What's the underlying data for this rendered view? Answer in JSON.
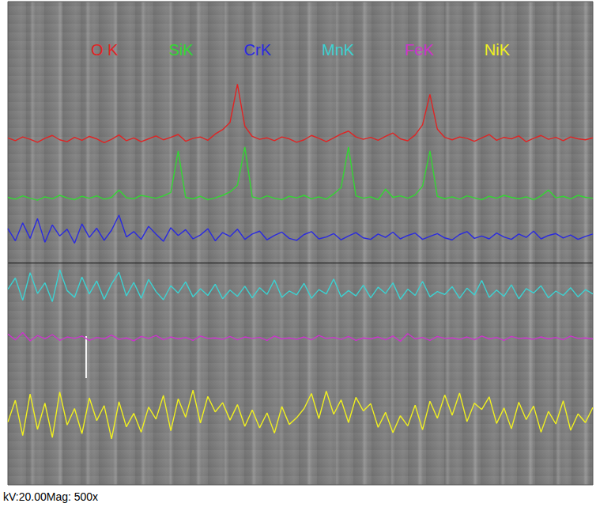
{
  "chart_data": {
    "type": "line",
    "caption": "kV:20.00Mag: 500x",
    "legend": "top",
    "grid": false,
    "tick_labels": false,
    "xlim": [
      0,
      79
    ],
    "ylim": [
      0,
      100
    ],
    "x": [
      0,
      1,
      2,
      3,
      4,
      5,
      6,
      7,
      8,
      9,
      10,
      11,
      12,
      13,
      14,
      15,
      16,
      17,
      18,
      19,
      20,
      21,
      22,
      23,
      24,
      25,
      26,
      27,
      28,
      29,
      30,
      31,
      32,
      33,
      34,
      35,
      36,
      37,
      38,
      39,
      40,
      41,
      42,
      43,
      44,
      45,
      46,
      47,
      48,
      49,
      50,
      51,
      52,
      53,
      54,
      55,
      56,
      57,
      58,
      59,
      60,
      61,
      62,
      63,
      64,
      65,
      66,
      67,
      68,
      69,
      70,
      71,
      72,
      73,
      74,
      75,
      76,
      77,
      78,
      79
    ],
    "series": [
      {
        "name": "O K",
        "color": "#e02424",
        "values": [
          71.8,
          71.2,
          72.0,
          71.5,
          70.9,
          71.7,
          72.3,
          71.4,
          71.0,
          71.9,
          71.3,
          72.1,
          71.6,
          70.8,
          71.5,
          72.4,
          71.2,
          71.8,
          71.0,
          71.6,
          72.2,
          71.4,
          71.9,
          72.5,
          71.1,
          71.7,
          72.0,
          71.3,
          72.6,
          73.5,
          75.0,
          82.9,
          74.2,
          72.1,
          71.5,
          71.8,
          71.2,
          72.0,
          71.6,
          70.9,
          71.4,
          72.3,
          71.7,
          71.0,
          71.8,
          72.6,
          73.2,
          72.0,
          71.5,
          71.9,
          71.3,
          72.1,
          72.8,
          71.6,
          71.2,
          72.4,
          74.5,
          80.8,
          73.6,
          71.9,
          71.4,
          72.0,
          71.7,
          71.1,
          71.8,
          72.5,
          71.3,
          71.9,
          71.6,
          72.2,
          71.0,
          71.7,
          72.3,
          71.5,
          71.9,
          71.2,
          72.0,
          71.6,
          71.4,
          71.8
        ]
      },
      {
        "name": "SiK",
        "color": "#33d633",
        "values": [
          59.5,
          59.1,
          59.8,
          59.3,
          58.9,
          59.6,
          59.2,
          59.9,
          59.4,
          59.0,
          59.7,
          59.3,
          59.8,
          59.1,
          59.5,
          61.0,
          59.4,
          59.2,
          59.9,
          59.6,
          59.3,
          59.8,
          60.5,
          69.1,
          59.5,
          59.2,
          59.7,
          59.0,
          59.4,
          59.9,
          60.6,
          62.0,
          69.9,
          59.6,
          59.2,
          59.8,
          59.3,
          59.0,
          59.7,
          59.4,
          59.9,
          59.2,
          59.6,
          59.1,
          60.2,
          61.5,
          69.9,
          59.8,
          59.3,
          59.6,
          59.0,
          61.2,
          59.5,
          59.8,
          59.3,
          60.0,
          61.8,
          69.1,
          59.7,
          59.2,
          59.6,
          59.1,
          59.8,
          59.4,
          59.0,
          59.7,
          59.3,
          59.9,
          59.5,
          59.2,
          59.6,
          59.0,
          59.8,
          61.0,
          59.4,
          59.7,
          59.2,
          59.9,
          59.5,
          59.3
        ]
      },
      {
        "name": "CrK",
        "color": "#2a2ae0",
        "values": [
          53.0,
          50.5,
          54.2,
          51.0,
          55.1,
          50.2,
          53.8,
          51.5,
          52.9,
          50.0,
          54.0,
          51.2,
          53.1,
          50.6,
          52.7,
          55.8,
          51.3,
          52.4,
          50.8,
          53.5,
          51.9,
          50.4,
          53.2,
          51.6,
          52.8,
          50.9,
          51.7,
          53.0,
          50.5,
          52.2,
          51.4,
          52.9,
          50.8,
          51.9,
          52.5,
          50.7,
          51.6,
          52.3,
          51.0,
          50.6,
          51.8,
          52.4,
          50.9,
          51.3,
          52.0,
          50.7,
          51.5,
          52.2,
          51.1,
          50.8,
          51.9,
          51.2,
          52.3,
          50.9,
          51.6,
          52.1,
          50.8,
          51.4,
          52.0,
          51.1,
          50.7,
          51.8,
          52.4,
          51.0,
          51.5,
          50.9,
          52.1,
          51.3,
          50.8,
          51.9,
          51.2,
          52.5,
          50.9,
          51.6,
          52.0,
          51.1,
          51.7,
          50.8,
          51.4,
          51.9
        ]
      },
      {
        "name": "MnK",
        "color": "#3cd2d2",
        "values": [
          40.5,
          42.8,
          38.2,
          43.9,
          39.6,
          41.8,
          37.9,
          44.5,
          40.2,
          38.8,
          43.0,
          39.5,
          42.2,
          38.4,
          41.6,
          44.0,
          39.1,
          41.9,
          38.6,
          42.5,
          40.0,
          38.3,
          41.2,
          39.7,
          42.0,
          38.9,
          40.6,
          39.2,
          41.5,
          38.5,
          40.3,
          39.0,
          41.1,
          38.7,
          40.8,
          39.4,
          42.4,
          38.8,
          40.1,
          39.3,
          41.7,
          38.6,
          40.4,
          39.5,
          42.6,
          38.9,
          40.2,
          39.1,
          41.3,
          38.7,
          40.9,
          39.6,
          41.8,
          38.4,
          40.5,
          39.2,
          42.1,
          38.9,
          40.0,
          39.4,
          41.0,
          38.6,
          40.7,
          39.3,
          42.3,
          38.8,
          40.3,
          39.0,
          41.4,
          38.5,
          40.6,
          39.7,
          41.2,
          38.7,
          40.1,
          39.2,
          40.8,
          38.9,
          40.4,
          39.5
        ]
      },
      {
        "name": "FeK",
        "color": "#cc33cc",
        "values": [
          31.2,
          30.0,
          31.5,
          29.8,
          30.9,
          30.2,
          31.1,
          29.9,
          30.6,
          30.3,
          30.8,
          29.9,
          30.5,
          30.2,
          31.0,
          30.1,
          30.4,
          29.8,
          30.7,
          30.3,
          30.9,
          30.0,
          30.6,
          30.2,
          30.5,
          29.9,
          30.8,
          30.3,
          30.4,
          30.1,
          30.7,
          30.0,
          30.6,
          30.3,
          30.5,
          29.9,
          30.8,
          30.2,
          30.4,
          30.1,
          30.6,
          30.0,
          30.9,
          30.3,
          30.5,
          30.1,
          30.7,
          29.9,
          30.4,
          30.2,
          30.6,
          30.0,
          30.8,
          29.7,
          31.3,
          30.2,
          30.5,
          29.9,
          30.7,
          30.3,
          30.4,
          30.1,
          30.6,
          30.0,
          30.8,
          30.2,
          30.5,
          29.9,
          30.7,
          30.3,
          30.4,
          30.1,
          30.6,
          30.2,
          30.5,
          30.0,
          30.8,
          30.3,
          30.4,
          30.2
        ]
      },
      {
        "name": "NiK",
        "color": "#f0f020",
        "values": [
          13.0,
          17.5,
          10.2,
          18.8,
          11.5,
          16.9,
          9.8,
          19.2,
          12.4,
          15.8,
          10.6,
          18.0,
          13.3,
          16.4,
          9.5,
          17.2,
          12.0,
          14.8,
          10.9,
          16.1,
          13.6,
          18.5,
          11.2,
          17.8,
          14.0,
          19.6,
          12.8,
          18.3,
          15.1,
          17.0,
          13.4,
          16.6,
          12.1,
          15.5,
          11.8,
          14.9,
          10.7,
          16.2,
          12.5,
          13.9,
          15.8,
          18.9,
          13.7,
          19.4,
          14.6,
          17.6,
          12.9,
          18.1,
          15.3,
          16.8,
          11.9,
          15.0,
          10.8,
          14.3,
          12.2,
          16.5,
          11.4,
          17.3,
          13.8,
          18.6,
          14.4,
          19.0,
          13.1,
          16.9,
          15.6,
          18.2,
          12.7,
          15.9,
          11.6,
          17.1,
          13.5,
          16.3,
          10.9,
          15.2,
          12.6,
          17.4,
          11.3,
          14.7,
          12.9,
          16.0
        ]
      }
    ]
  }
}
